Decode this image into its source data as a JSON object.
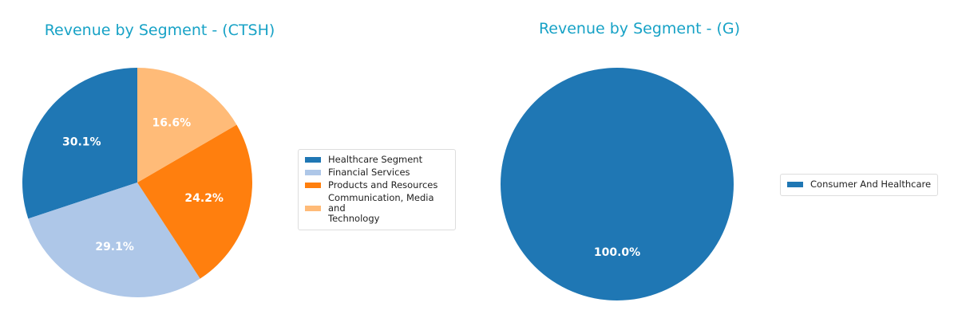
{
  "chart_data": [
    {
      "type": "pie",
      "title": "Revenue by Segment - (CTSH)",
      "categories": [
        "Healthcare Segment",
        "Financial Services",
        "Products and Resources",
        "Communication, Media and Technology"
      ],
      "values": [
        30.1,
        29.1,
        24.2,
        16.6
      ],
      "labels": [
        "30.1%",
        "29.1%",
        "24.2%",
        "16.6%"
      ],
      "colors": [
        "#1f77b4",
        "#aec7e8",
        "#ff7f0e",
        "#ffbb78"
      ],
      "start_angle": 90,
      "direction": "counterclockwise",
      "legend_position": "right"
    },
    {
      "type": "pie",
      "title": "Revenue by Segment - (G)",
      "categories": [
        "Consumer And Healthcare"
      ],
      "values": [
        100.0
      ],
      "labels": [
        "100.0%"
      ],
      "colors": [
        "#1f77b4"
      ],
      "start_angle": 90,
      "direction": "counterclockwise",
      "legend_position": "right"
    }
  ],
  "charts": {
    "left": {
      "title": "Revenue by Segment - (CTSH)",
      "legend": [
        "Healthcare Segment",
        "Financial Services",
        "Products and Resources",
        "Communication, Media and\nTechnology"
      ],
      "pct_labels": [
        "30.1%",
        "29.1%",
        "24.2%",
        "16.6%"
      ]
    },
    "right": {
      "title": "Revenue by Segment - (G)",
      "legend": [
        "Consumer And Healthcare"
      ],
      "pct_labels": [
        "100.0%"
      ]
    }
  }
}
